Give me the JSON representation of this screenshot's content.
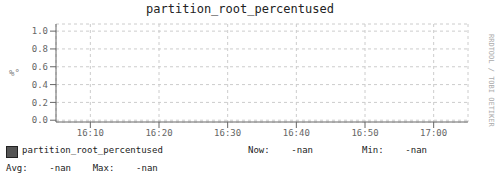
{
  "chart_data": {
    "type": "line",
    "title": "partition_root_percentused",
    "y_label": "%°",
    "x": [],
    "series": [
      {
        "name": "partition_root_percentused",
        "color": "#555555",
        "values": []
      }
    ],
    "xlim": [
      0,
      60
    ],
    "xticks": [
      {
        "value": 5,
        "label": "16:10"
      },
      {
        "value": 15,
        "label": "16:20"
      },
      {
        "value": 25,
        "label": "16:30"
      },
      {
        "value": 35,
        "label": "16:40"
      },
      {
        "value": 45,
        "label": "16:50"
      },
      {
        "value": 55,
        "label": "17:00"
      }
    ],
    "ylim": [
      -0.02,
      1.08
    ],
    "yticks": [
      {
        "value": 0,
        "label": "0.0"
      },
      0.2,
      0.4,
      0.6,
      0.8,
      {
        "value": 1,
        "label": "1.0"
      }
    ],
    "grid": true,
    "legend": "lower left",
    "annotations": [
      "Now:    -nan",
      "Min:    -nan",
      "Avg:    -nan    Max:    -nan",
      "RRDTOOL / TOBI OETIKER"
    ]
  }
}
